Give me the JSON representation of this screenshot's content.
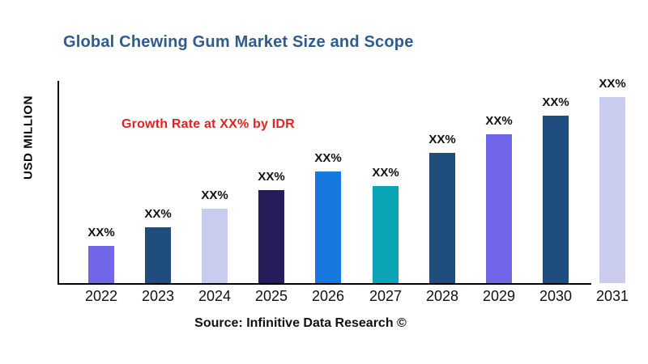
{
  "header": {
    "title": "Global Chewing Gum Market Size and Scope",
    "title_color": "#2F5C8D"
  },
  "annotation": {
    "text": "Growth Rate at XX% by IDR",
    "color": "#E32222"
  },
  "axis": {
    "y_label": "USD MILLION",
    "axis_color": "#000000"
  },
  "footer": {
    "source": "Source: Infinitive Data Research ©"
  },
  "chart_data": {
    "type": "bar",
    "title": "Global Chewing Gum Market Size and Scope",
    "xlabel": "",
    "ylabel": "USD MILLION",
    "categories": [
      "2022",
      "2023",
      "2024",
      "2025",
      "2026",
      "2027",
      "2028",
      "2029",
      "2030",
      "2031"
    ],
    "values": [
      20,
      30,
      40,
      50,
      60,
      52,
      70,
      80,
      90,
      100
    ],
    "value_unit": "relative (actual figures masked as XX% in source image)",
    "bar_value_labels": [
      "XX%",
      "XX%",
      "XX%",
      "XX%",
      "XX%",
      "XX%",
      "XX%",
      "XX%",
      "XX%",
      "XX%"
    ],
    "bar_colors": [
      "#7166E8",
      "#1F4E7E",
      "#C9CCEF",
      "#251D5A",
      "#1778E0",
      "#0AA4B6",
      "#1F4E7E",
      "#7166E8",
      "#1F4E7E",
      "#C9CCEF"
    ],
    "annotation": "Growth Rate at XX% by IDR",
    "annotation_color": "#E32222",
    "source": "Source: Infinitive Data Research ©",
    "grid": false,
    "y_ticks_visible": false,
    "legend": "none",
    "ylim": [
      0,
      110
    ]
  }
}
